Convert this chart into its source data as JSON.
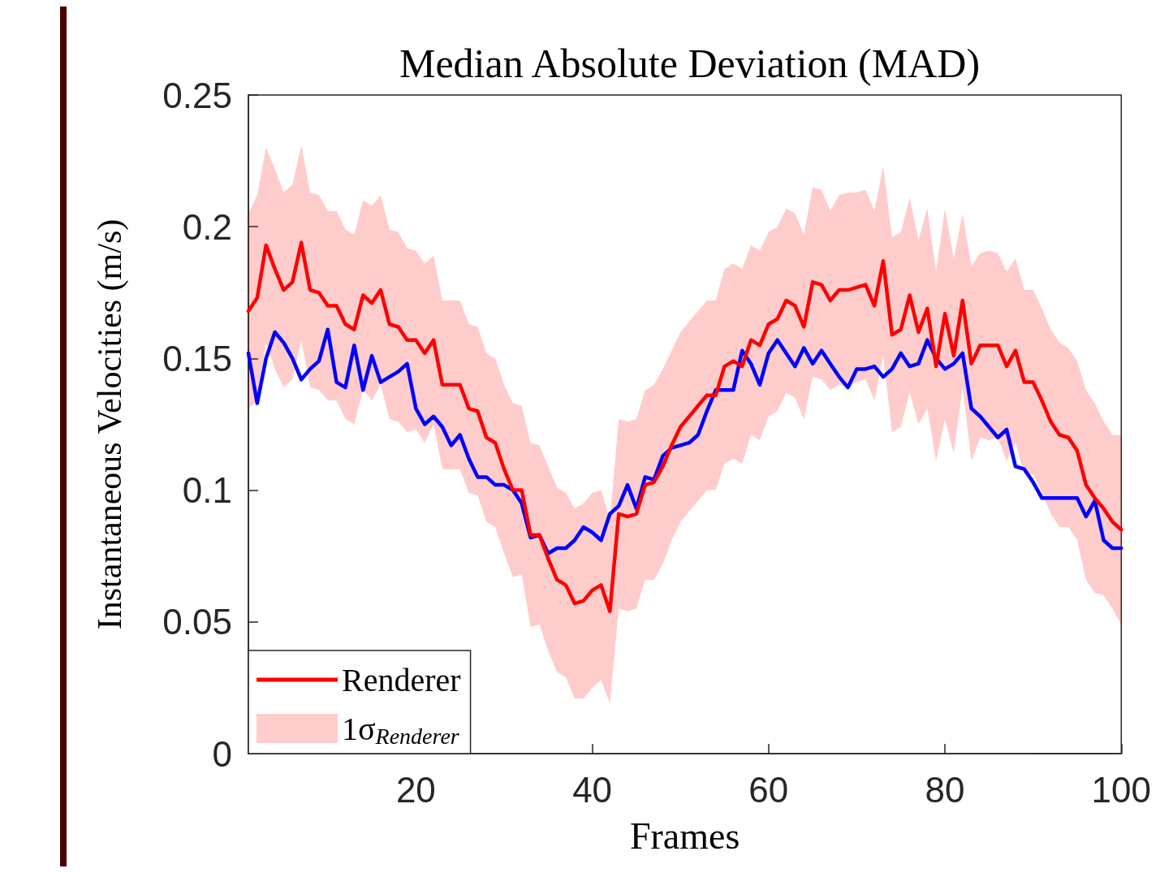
{
  "chart_data": {
    "type": "line",
    "title": "Median Absolute Deviation (MAD)",
    "xlabel": "Frames",
    "ylabel": "Instantaneous Velocities (m/s)",
    "x": [
      1,
      2,
      3,
      4,
      5,
      6,
      7,
      8,
      9,
      10,
      11,
      12,
      13,
      14,
      15,
      16,
      17,
      18,
      19,
      20,
      21,
      22,
      23,
      24,
      25,
      26,
      27,
      28,
      29,
      30,
      31,
      32,
      33,
      34,
      35,
      36,
      37,
      38,
      39,
      40,
      41,
      42,
      43,
      44,
      45,
      46,
      47,
      48,
      49,
      50,
      51,
      52,
      53,
      54,
      55,
      56,
      57,
      58,
      59,
      60,
      61,
      62,
      63,
      64,
      65,
      66,
      67,
      68,
      69,
      70,
      71,
      72,
      73,
      74,
      75,
      76,
      77,
      78,
      79,
      80,
      81,
      82,
      83,
      84,
      85,
      86,
      87,
      88,
      89,
      90,
      91,
      92,
      93,
      94,
      95,
      96,
      97,
      98,
      99,
      100
    ],
    "xlim": [
      1,
      100
    ],
    "xticks": [
      20,
      40,
      60,
      80,
      100
    ],
    "ylim": [
      0,
      0.25
    ],
    "yticks": [
      0,
      0.05,
      0.1,
      0.15,
      0.2,
      0.25
    ],
    "grid": false,
    "legend": "bottom left",
    "series": [
      {
        "color": "#0000ff",
        "values": [
          0.152,
          0.133,
          0.15,
          0.16,
          0.156,
          0.15,
          0.142,
          0.146,
          0.149,
          0.161,
          0.141,
          0.139,
          0.155,
          0.138,
          0.151,
          0.141,
          0.143,
          0.145,
          0.148,
          0.131,
          0.125,
          0.128,
          0.124,
          0.117,
          0.121,
          0.112,
          0.105,
          0.105,
          0.102,
          0.102,
          0.1,
          0.095,
          0.082,
          0.083,
          0.076,
          0.078,
          0.078,
          0.081,
          0.086,
          0.084,
          0.081,
          0.091,
          0.094,
          0.102,
          0.093,
          0.105,
          0.104,
          0.113,
          0.116,
          0.117,
          0.118,
          0.121,
          0.13,
          0.138,
          0.138,
          0.138,
          0.153,
          0.148,
          0.14,
          0.152,
          0.157,
          0.152,
          0.147,
          0.154,
          0.148,
          0.153,
          0.148,
          0.143,
          0.139,
          0.146,
          0.146,
          0.147,
          0.143,
          0.146,
          0.152,
          0.147,
          0.148,
          0.157,
          0.15,
          0.146,
          0.148,
          0.152,
          0.131,
          0.128,
          0.124,
          0.12,
          0.123,
          0.109,
          0.108,
          0.103,
          0.097,
          0.097,
          0.097,
          0.097,
          0.097,
          0.09,
          0.096,
          0.081,
          0.078,
          0.078
        ]
      },
      {
        "name": "Renderer",
        "color": "#ff0000",
        "values": [
          0.168,
          0.173,
          0.193,
          0.184,
          0.176,
          0.179,
          0.194,
          0.176,
          0.175,
          0.17,
          0.17,
          0.163,
          0.161,
          0.174,
          0.171,
          0.176,
          0.163,
          0.162,
          0.157,
          0.157,
          0.152,
          0.157,
          0.14,
          0.14,
          0.14,
          0.131,
          0.13,
          0.12,
          0.118,
          0.108,
          0.1,
          0.1,
          0.083,
          0.083,
          0.074,
          0.066,
          0.064,
          0.057,
          0.058,
          0.062,
          0.064,
          0.054,
          0.091,
          0.09,
          0.091,
          0.102,
          0.103,
          0.109,
          0.117,
          0.124,
          0.128,
          0.132,
          0.136,
          0.136,
          0.147,
          0.149,
          0.147,
          0.157,
          0.155,
          0.163,
          0.165,
          0.172,
          0.17,
          0.162,
          0.179,
          0.178,
          0.172,
          0.176,
          0.176,
          0.177,
          0.178,
          0.17,
          0.187,
          0.159,
          0.161,
          0.174,
          0.16,
          0.169,
          0.147,
          0.167,
          0.151,
          0.172,
          0.148,
          0.155,
          0.155,
          0.155,
          0.147,
          0.153,
          0.141,
          0.141,
          0.134,
          0.126,
          0.121,
          0.12,
          0.115,
          0.102,
          0.097,
          0.093,
          0.088,
          0.085
        ],
        "upper": [
          0.205,
          0.212,
          0.23,
          0.222,
          0.213,
          0.216,
          0.231,
          0.213,
          0.212,
          0.206,
          0.206,
          0.199,
          0.197,
          0.21,
          0.208,
          0.212,
          0.199,
          0.198,
          0.192,
          0.191,
          0.186,
          0.189,
          0.172,
          0.172,
          0.172,
          0.163,
          0.162,
          0.152,
          0.15,
          0.14,
          0.133,
          0.132,
          0.118,
          0.117,
          0.109,
          0.101,
          0.099,
          0.093,
          0.095,
          0.099,
          0.1,
          0.089,
          0.127,
          0.126,
          0.127,
          0.138,
          0.14,
          0.146,
          0.153,
          0.16,
          0.164,
          0.168,
          0.172,
          0.172,
          0.184,
          0.186,
          0.184,
          0.193,
          0.191,
          0.198,
          0.2,
          0.207,
          0.205,
          0.197,
          0.215,
          0.214,
          0.206,
          0.212,
          0.213,
          0.213,
          0.214,
          0.206,
          0.223,
          0.196,
          0.198,
          0.211,
          0.195,
          0.207,
          0.183,
          0.207,
          0.188,
          0.205,
          0.185,
          0.19,
          0.191,
          0.19,
          0.183,
          0.188,
          0.176,
          0.176,
          0.169,
          0.161,
          0.156,
          0.154,
          0.149,
          0.138,
          0.133,
          0.126,
          0.121,
          0.121
        ],
        "lower": [
          0.131,
          0.134,
          0.156,
          0.146,
          0.139,
          0.142,
          0.157,
          0.139,
          0.138,
          0.134,
          0.134,
          0.127,
          0.125,
          0.138,
          0.134,
          0.14,
          0.127,
          0.126,
          0.122,
          0.123,
          0.118,
          0.125,
          0.108,
          0.108,
          0.108,
          0.099,
          0.098,
          0.088,
          0.086,
          0.076,
          0.067,
          0.068,
          0.048,
          0.049,
          0.039,
          0.031,
          0.029,
          0.021,
          0.021,
          0.025,
          0.028,
          0.019,
          0.055,
          0.054,
          0.055,
          0.066,
          0.066,
          0.072,
          0.081,
          0.088,
          0.092,
          0.096,
          0.1,
          0.1,
          0.11,
          0.112,
          0.11,
          0.121,
          0.119,
          0.128,
          0.13,
          0.137,
          0.135,
          0.127,
          0.143,
          0.142,
          0.138,
          0.14,
          0.139,
          0.141,
          0.142,
          0.134,
          0.151,
          0.122,
          0.124,
          0.137,
          0.125,
          0.131,
          0.111,
          0.127,
          0.114,
          0.139,
          0.111,
          0.12,
          0.119,
          0.12,
          0.111,
          0.118,
          0.106,
          0.106,
          0.099,
          0.091,
          0.086,
          0.086,
          0.081,
          0.066,
          0.061,
          0.06,
          0.055,
          0.049
        ]
      }
    ],
    "annotations": [
      "1σ$_{Renderer}$"
    ]
  }
}
